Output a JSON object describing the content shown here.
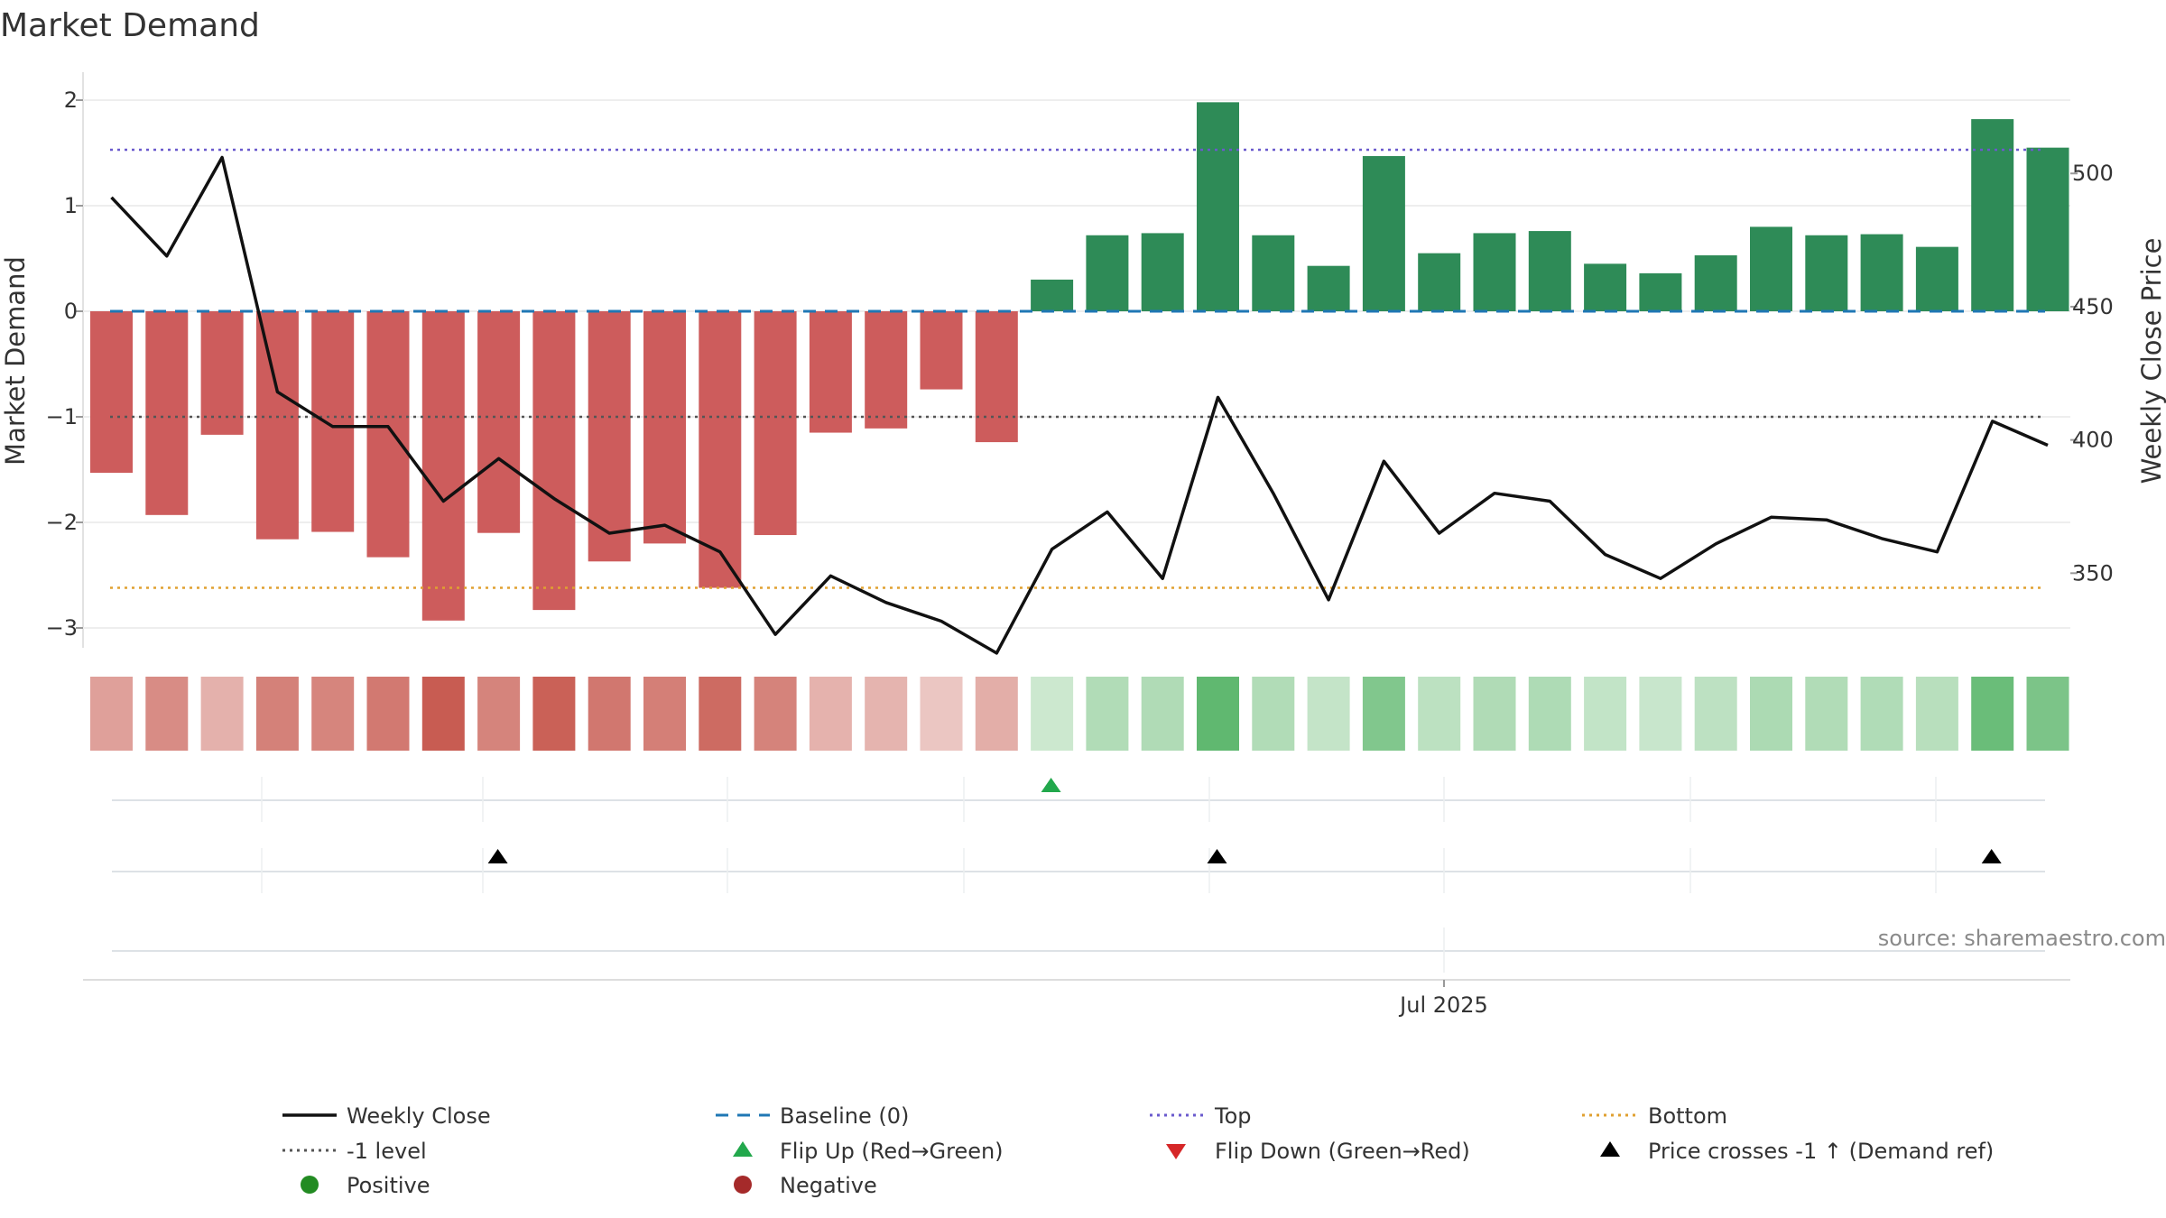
{
  "chart_data": {
    "type": "bar",
    "title": "Market Demand",
    "ylabel_left": "Market Demand",
    "ylabel_right": "Weekly Close Price",
    "source": "source: sharemaestro.com",
    "x_tick_label": "Jul 2025",
    "x_tick_week_index": 24.6,
    "left_axis": {
      "ylim": [
        -3.2,
        2.2
      ],
      "ticks": [
        2,
        1,
        0,
        -1,
        -2,
        -3
      ],
      "tick_labels": [
        "2",
        "1",
        "0",
        "−1",
        "−2",
        "−3"
      ]
    },
    "right_axis": {
      "ylim": [
        322,
        538
      ],
      "ticks": [
        500,
        450,
        400,
        350
      ],
      "tick_labels": [
        "500",
        "450",
        "400",
        "350"
      ]
    },
    "reference_lines": {
      "baseline": 0,
      "top": 1.53,
      "bottom": -2.62,
      "minus1": -1
    },
    "weeks": 36,
    "demand": [
      -1.53,
      -1.93,
      -1.17,
      -2.16,
      -2.09,
      -2.33,
      -2.93,
      -2.1,
      -2.83,
      -2.37,
      -2.2,
      -2.62,
      -2.12,
      -1.15,
      -1.11,
      -0.74,
      -1.24,
      0.3,
      0.72,
      0.74,
      1.98,
      0.72,
      0.43,
      1.47,
      0.55,
      0.74,
      0.76,
      0.45,
      0.36,
      0.53,
      0.8,
      0.72,
      0.73,
      0.61,
      1.82,
      1.55
    ],
    "weekly_close": [
      491,
      469,
      506,
      418,
      405,
      405,
      377,
      393,
      378,
      365,
      368,
      358,
      327,
      349,
      339,
      332,
      320,
      359,
      373,
      348,
      416,
      380,
      340,
      392,
      365,
      380,
      377,
      357,
      348,
      361,
      371,
      370,
      363,
      358,
      407,
      398
    ],
    "flip_up_weeks": [
      17
    ],
    "flip_down_weeks": [],
    "price_cross_weeks": [
      7,
      20,
      34
    ],
    "heat_tiles": "one tile per week, color intensity by demand (red negative, green positive)",
    "colors": {
      "bar_negative": "#cd5c5c",
      "bar_positive": "#2e8b57",
      "close_line": "#111111",
      "baseline": "#1f77b4",
      "top": "#6a5acd",
      "bottom": "#e0a030",
      "minus1": "#555555",
      "flip_up": "#22a84c",
      "flip_down": "#d62728",
      "price_cross": "#000000",
      "positive_dot": "#228b22",
      "negative_dot": "#a52a2a"
    },
    "legend": {
      "weekly_close": "Weekly Close",
      "baseline": "Baseline (0)",
      "top": "Top",
      "bottom": "Bottom",
      "minus1": "-1 level",
      "flip_up": "Flip Up (Red→Green)",
      "flip_down": "Flip Down (Green→Red)",
      "price_cross": "Price crosses -1 ↑ (Demand ref)",
      "positive": "Positive",
      "negative": "Negative"
    }
  }
}
